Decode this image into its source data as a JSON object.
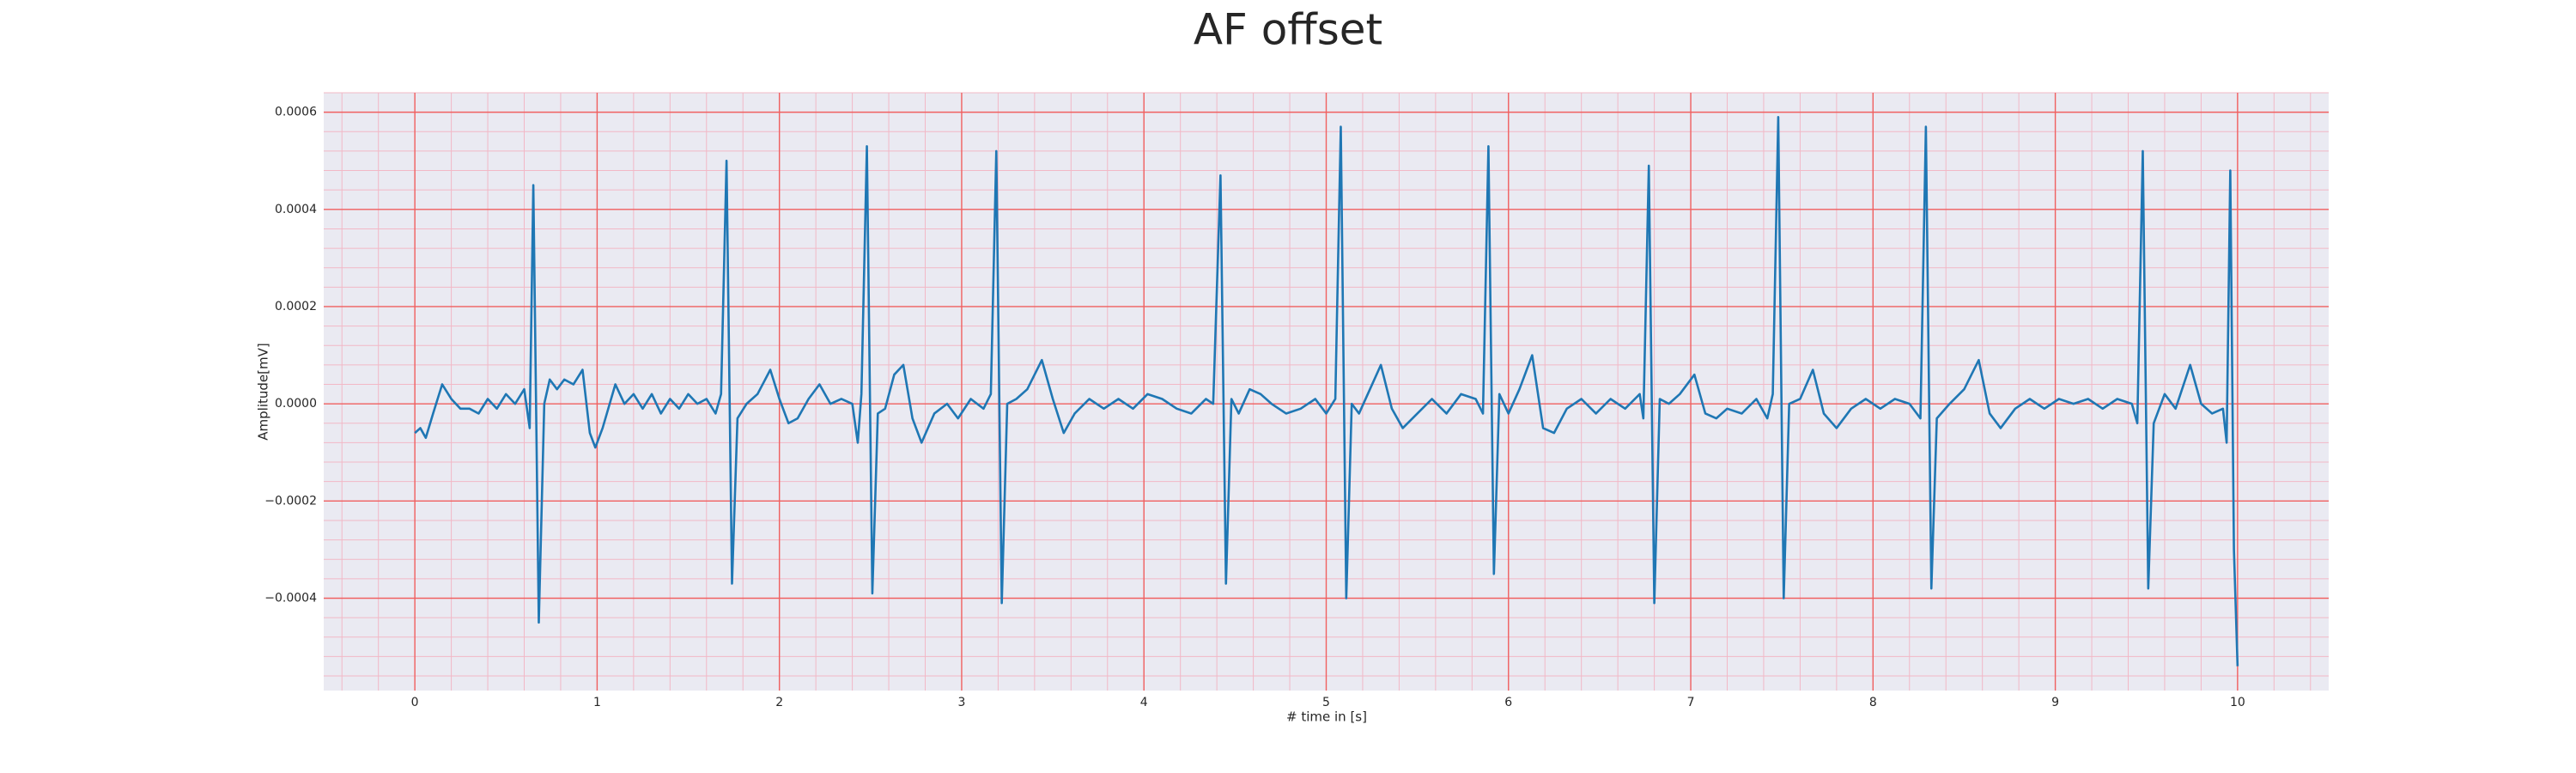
{
  "chart_data": {
    "type": "line",
    "title": "AF offset",
    "xlabel": "# time in [s]",
    "ylabel": "Amplitude[mV]",
    "color": "#1f77b4",
    "grid": true,
    "minor_grid": true,
    "xlim": [
      -0.5,
      10.5
    ],
    "ylim": [
      -0.00059,
      0.00064
    ],
    "xticks": [
      0,
      1,
      2,
      3,
      4,
      5,
      6,
      7,
      8,
      9,
      10
    ],
    "yticks": [
      {
        "value": -0.0004,
        "label": "−0.0004"
      },
      {
        "value": -0.0002,
        "label": "−0.0002"
      },
      {
        "value": 0,
        "label": "0.0000"
      },
      {
        "value": 0.0002,
        "label": "0.0002"
      },
      {
        "value": 0.0004,
        "label": "0.0004"
      },
      {
        "value": 0.0006,
        "label": "0.0006"
      }
    ],
    "x": [
      0,
      0.03,
      0.06,
      0.1,
      0.15,
      0.2,
      0.25,
      0.3,
      0.35,
      0.4,
      0.45,
      0.5,
      0.55,
      0.6,
      0.63,
      0.65,
      0.68,
      0.71,
      0.74,
      0.78,
      0.82,
      0.87,
      0.92,
      0.96,
      0.99,
      1.03,
      1.1,
      1.15,
      1.2,
      1.25,
      1.3,
      1.35,
      1.4,
      1.45,
      1.5,
      1.55,
      1.6,
      1.65,
      1.68,
      1.71,
      1.74,
      1.77,
      1.82,
      1.88,
      1.95,
      2.0,
      2.05,
      2.1,
      2.16,
      2.22,
      2.28,
      2.34,
      2.4,
      2.43,
      2.45,
      2.48,
      2.51,
      2.54,
      2.58,
      2.63,
      2.68,
      2.73,
      2.78,
      2.85,
      2.92,
      2.98,
      3.05,
      3.12,
      3.16,
      3.19,
      3.22,
      3.25,
      3.3,
      3.36,
      3.44,
      3.5,
      3.56,
      3.62,
      3.7,
      3.78,
      3.86,
      3.94,
      4.02,
      4.1,
      4.18,
      4.26,
      4.34,
      4.38,
      4.42,
      4.45,
      4.48,
      4.52,
      4.58,
      4.64,
      4.7,
      4.78,
      4.86,
      4.94,
      5.0,
      5.05,
      5.08,
      5.11,
      5.14,
      5.18,
      5.24,
      5.3,
      5.36,
      5.42,
      5.5,
      5.58,
      5.66,
      5.74,
      5.82,
      5.86,
      5.89,
      5.92,
      5.95,
      6.0,
      6.06,
      6.13,
      6.19,
      6.25,
      6.32,
      6.4,
      6.48,
      6.56,
      6.64,
      6.72,
      6.74,
      6.77,
      6.8,
      6.83,
      6.88,
      6.94,
      7.02,
      7.08,
      7.14,
      7.2,
      7.28,
      7.36,
      7.42,
      7.45,
      7.48,
      7.51,
      7.54,
      7.6,
      7.67,
      7.73,
      7.8,
      7.88,
      7.96,
      8.04,
      8.12,
      8.2,
      8.26,
      8.29,
      8.32,
      8.35,
      8.42,
      8.5,
      8.58,
      8.64,
      8.7,
      8.78,
      8.86,
      8.94,
      9.02,
      9.1,
      9.18,
      9.26,
      9.34,
      9.42,
      9.45,
      9.48,
      9.51,
      9.54,
      9.6,
      9.66,
      9.74,
      9.8,
      9.86,
      9.92,
      9.94,
      9.96,
      9.98,
      10.0
    ],
    "values": [
      -6e-05,
      -5e-05,
      -7e-05,
      -2e-05,
      4e-05,
      1e-05,
      -1e-05,
      -1e-05,
      -2e-05,
      1e-05,
      -1e-05,
      2e-05,
      0,
      3e-05,
      -5e-05,
      0.00045,
      -0.00045,
      0,
      5e-05,
      3e-05,
      5e-05,
      4e-05,
      7e-05,
      -6e-05,
      -9e-05,
      -5e-05,
      4e-05,
      0,
      2e-05,
      -1e-05,
      2e-05,
      -2e-05,
      1e-05,
      -1e-05,
      2e-05,
      0,
      1e-05,
      -2e-05,
      2e-05,
      0.0005,
      -0.00037,
      -3e-05,
      0,
      2e-05,
      7e-05,
      1e-05,
      -4e-05,
      -3e-05,
      1e-05,
      4e-05,
      0,
      1e-05,
      0,
      -8e-05,
      2e-05,
      0.00053,
      -0.00039,
      -2e-05,
      -1e-05,
      6e-05,
      8e-05,
      -3e-05,
      -8e-05,
      -2e-05,
      0,
      -3e-05,
      1e-05,
      -1e-05,
      2e-05,
      0.00052,
      -0.00041,
      0,
      1e-05,
      3e-05,
      9e-05,
      1e-05,
      -6e-05,
      -2e-05,
      1e-05,
      -1e-05,
      1e-05,
      -1e-05,
      2e-05,
      1e-05,
      -1e-05,
      -2e-05,
      1e-05,
      0,
      0.00047,
      -0.00037,
      1e-05,
      -2e-05,
      3e-05,
      2e-05,
      0,
      -2e-05,
      -1e-05,
      1e-05,
      -2e-05,
      1e-05,
      0.00057,
      -0.0004,
      0,
      -2e-05,
      3e-05,
      8e-05,
      -1e-05,
      -5e-05,
      -2e-05,
      1e-05,
      -2e-05,
      2e-05,
      1e-05,
      -2e-05,
      0.00053,
      -0.00035,
      2e-05,
      -2e-05,
      3e-05,
      0.0001,
      -5e-05,
      -6e-05,
      -1e-05,
      1e-05,
      -2e-05,
      1e-05,
      -1e-05,
      2e-05,
      -3e-05,
      0.00049,
      -0.00041,
      1e-05,
      0,
      2e-05,
      6e-05,
      -2e-05,
      -3e-05,
      -1e-05,
      -2e-05,
      1e-05,
      -3e-05,
      2e-05,
      0.00059,
      -0.0004,
      0,
      1e-05,
      7e-05,
      -2e-05,
      -5e-05,
      -1e-05,
      1e-05,
      -1e-05,
      1e-05,
      0,
      -3e-05,
      0.00057,
      -0.00038,
      -3e-05,
      0,
      3e-05,
      9e-05,
      -2e-05,
      -5e-05,
      -1e-05,
      1e-05,
      -1e-05,
      1e-05,
      0,
      1e-05,
      -1e-05,
      1e-05,
      0,
      -4e-05,
      0.00052,
      -0.00038,
      -4e-05,
      2e-05,
      -1e-05,
      8e-05,
      0,
      -2e-05,
      -1e-05,
      -8e-05,
      0.00048,
      -0.0003,
      -0.00054
    ]
  }
}
